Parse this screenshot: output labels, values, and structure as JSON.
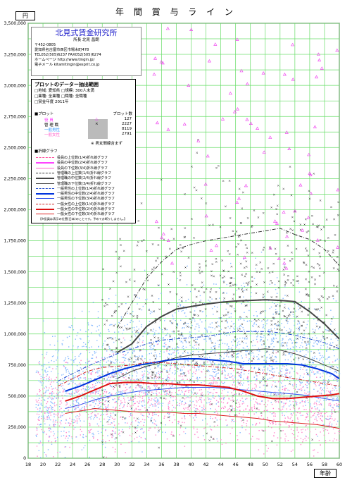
{
  "chart_data": {
    "type": "scatter",
    "title": "年 間 賞 与 ラ イ ン",
    "ylabel": "円",
    "xlabel": "年齢",
    "xlim": [
      18,
      60
    ],
    "ylim": [
      0,
      3500000
    ],
    "x_ticks": [
      18,
      20,
      22,
      24,
      26,
      28,
      30,
      32,
      34,
      36,
      38,
      40,
      42,
      44,
      46,
      48,
      50,
      52,
      54,
      56,
      58,
      60
    ],
    "y_ticks": [
      0,
      250000,
      500000,
      750000,
      1000000,
      1250000,
      1500000,
      1750000,
      2000000,
      2250000,
      2500000,
      2750000,
      3000000,
      3250000,
      3500000
    ],
    "y_tick_labels": [
      "0",
      "250,000",
      "500,000",
      "750,000",
      "1,000,000",
      "1,250,000",
      "1,500,000",
      "1,750,000",
      "2,000,000",
      "2,250,000",
      "2,500,000",
      "2,750,000",
      "3,000,000",
      "3,250,000",
      "3,500,000"
    ],
    "grid": true,
    "series": [
      {
        "name": "役員の上位数(1/4)折れ線グラフ",
        "color": "#ff4a9a",
        "style": "dashdot",
        "width": 1,
        "x": [],
        "y": []
      },
      {
        "name": "役員の中位数(2/4)折れ線グラフ",
        "color": "#ff44ff",
        "style": "solid",
        "width": 2,
        "x": [],
        "y": []
      },
      {
        "name": "役員の下位数(3/4)折れ線グラフ",
        "color": "#ff66cc",
        "style": "solid",
        "width": 1,
        "x": [],
        "y": []
      },
      {
        "name": "管理職の上位数(1/4)折れ線グラフ",
        "color": "#333333",
        "style": "dashdot",
        "width": 1,
        "x": [
          30,
          32,
          34,
          36,
          38,
          40,
          42,
          44,
          46,
          48,
          50,
          52,
          54,
          56,
          58,
          60
        ],
        "y": [
          1050000,
          1250000,
          1450000,
          1580000,
          1680000,
          1720000,
          1750000,
          1770000,
          1790000,
          1810000,
          1830000,
          1850000,
          1800000,
          1760000,
          1680000,
          1550000
        ]
      },
      {
        "name": "管理職の中位数(2/4)折れ線グラフ",
        "color": "#444444",
        "style": "solid",
        "width": 2,
        "x": [
          30,
          32,
          34,
          36,
          38,
          40,
          42,
          44,
          46,
          48,
          50,
          52,
          54,
          56,
          58,
          60
        ],
        "y": [
          850000,
          920000,
          1060000,
          1140000,
          1200000,
          1220000,
          1240000,
          1255000,
          1265000,
          1270000,
          1275000,
          1270000,
          1260000,
          1180000,
          1080000,
          960000
        ]
      },
      {
        "name": "管理職の下位数(3/4)折れ線グラフ",
        "color": "#444444",
        "style": "solid",
        "width": 1,
        "x": [
          30,
          32,
          34,
          36,
          38,
          40,
          42,
          44,
          46,
          48,
          50,
          52,
          54,
          56,
          58,
          60
        ],
        "y": [
          640000,
          700000,
          740000,
          770000,
          810000,
          830000,
          840000,
          850000,
          860000,
          870000,
          880000,
          870000,
          840000,
          800000,
          750000,
          700000
        ]
      },
      {
        "name": "一般男性の上位数(1/4)折れ線グラフ",
        "color": "#1a44cc",
        "style": "dashdot",
        "width": 1,
        "x": [
          22,
          24,
          26,
          28,
          30,
          32,
          34,
          36,
          38,
          40,
          42,
          44,
          46,
          48,
          50,
          52,
          54,
          56,
          58,
          60
        ],
        "y": [
          620000,
          680000,
          740000,
          790000,
          840000,
          880000,
          920000,
          950000,
          960000,
          970000,
          980000,
          1000000,
          1020000,
          1020000,
          1020000,
          1010000,
          990000,
          960000,
          930000,
          880000
        ]
      },
      {
        "name": "一般男性の中位数(2/4)折れ線グラフ",
        "color": "#0033dd",
        "style": "solid",
        "width": 2,
        "x": [
          23,
          25,
          27,
          29,
          31,
          33,
          35,
          37,
          39,
          41,
          43,
          45,
          47,
          49,
          51,
          53,
          55,
          57,
          59,
          60
        ],
        "y": [
          540000,
          580000,
          630000,
          680000,
          720000,
          750000,
          770000,
          790000,
          800000,
          800000,
          790000,
          780000,
          760000,
          760000,
          760000,
          760000,
          750000,
          720000,
          680000,
          640000
        ]
      },
      {
        "name": "一般男性の下位数(3/4)折れ線グラフ",
        "color": "#3355ee",
        "style": "solid",
        "width": 1,
        "x": [
          23,
          25,
          27,
          29,
          31,
          33,
          35,
          37,
          39,
          41,
          43,
          45,
          47,
          49,
          51,
          53,
          55,
          57,
          59,
          60
        ],
        "y": [
          400000,
          430000,
          470000,
          500000,
          520000,
          540000,
          550000,
          560000,
          570000,
          570000,
          570000,
          560000,
          550000,
          540000,
          530000,
          520000,
          510000,
          490000,
          470000,
          460000
        ]
      },
      {
        "name": "一般女性の上位数(1/4)折れ線グラフ",
        "color": "#cc2222",
        "style": "dashdot",
        "width": 1,
        "x": [
          22,
          24,
          26,
          28,
          30,
          32,
          34,
          36,
          38,
          40,
          42,
          44,
          46,
          48,
          50,
          52,
          54,
          56,
          58,
          60
        ],
        "y": [
          580000,
          640000,
          700000,
          730000,
          740000,
          750000,
          770000,
          770000,
          760000,
          750000,
          740000,
          730000,
          720000,
          700000,
          680000,
          660000,
          640000,
          620000,
          600000,
          580000
        ]
      },
      {
        "name": "一般女性の中位数(2/4)折れ線グラフ",
        "color": "#dd1111",
        "style": "solid",
        "width": 2,
        "x": [
          23,
          25,
          27,
          29,
          31,
          33,
          35,
          37,
          39,
          41,
          43,
          45,
          47,
          49,
          51,
          53,
          55,
          57,
          59,
          60
        ],
        "y": [
          460000,
          500000,
          550000,
          600000,
          610000,
          610000,
          600000,
          600000,
          590000,
          590000,
          580000,
          570000,
          540000,
          500000,
          480000,
          480000,
          490000,
          500000,
          510000,
          520000
        ]
      },
      {
        "name": "一般女性の下位数(3/4)折れ線グラフ",
        "color": "#dd2222",
        "style": "solid",
        "width": 1,
        "x": [
          23,
          25,
          27,
          29,
          31,
          33,
          35,
          37,
          39,
          41,
          43,
          45,
          47,
          49,
          51,
          53,
          55,
          57,
          59,
          60
        ],
        "y": [
          360000,
          380000,
          400000,
          390000,
          380000,
          370000,
          370000,
          370000,
          360000,
          360000,
          350000,
          340000,
          330000,
          320000,
          300000,
          290000,
          280000,
          270000,
          250000,
          240000
        ]
      }
    ]
  },
  "info": {
    "company": "北見式賃金研究所",
    "rep": "所長  北見  昌朗",
    "zip": "〒452-0805",
    "address": "愛知県名古屋市西区市場木町478",
    "tel": "TEL052(505)6237  FAX052(505)6274",
    "web": "ホームページ  http://www.tingin.jp/",
    "mail": "電子メール  kitamitingin@esprit.co.jp"
  },
  "legend": {
    "heading": "プロットのデーター抽出範囲",
    "cond1": "□地域: 愛知県 □規模: 300人未満",
    "cond2": "□業種: 全業種 □職種: 全職種",
    "cond3": "□賞金年度  2011年",
    "plot_title": "■プロット",
    "count_title": "プロット数",
    "plots": [
      {
        "label": "役  員",
        "symbol": "△",
        "count": "127",
        "color": "#ff33ff"
      },
      {
        "label": "管  理  職",
        "symbol": "×",
        "count": "2227",
        "color": "#000000"
      },
      {
        "label": "一般男性",
        "symbol": "",
        "count": "8119",
        "color": "#3399ff"
      },
      {
        "label": "一般女性",
        "symbol": "",
        "count": "2791",
        "color": "#ff66cc"
      }
    ],
    "mixnote": "※  男女間線含まず",
    "lines_title": "■折線グラフ",
    "note": "【※役員は表示の位置(日本)のことです。予めてお断りしません。】"
  }
}
